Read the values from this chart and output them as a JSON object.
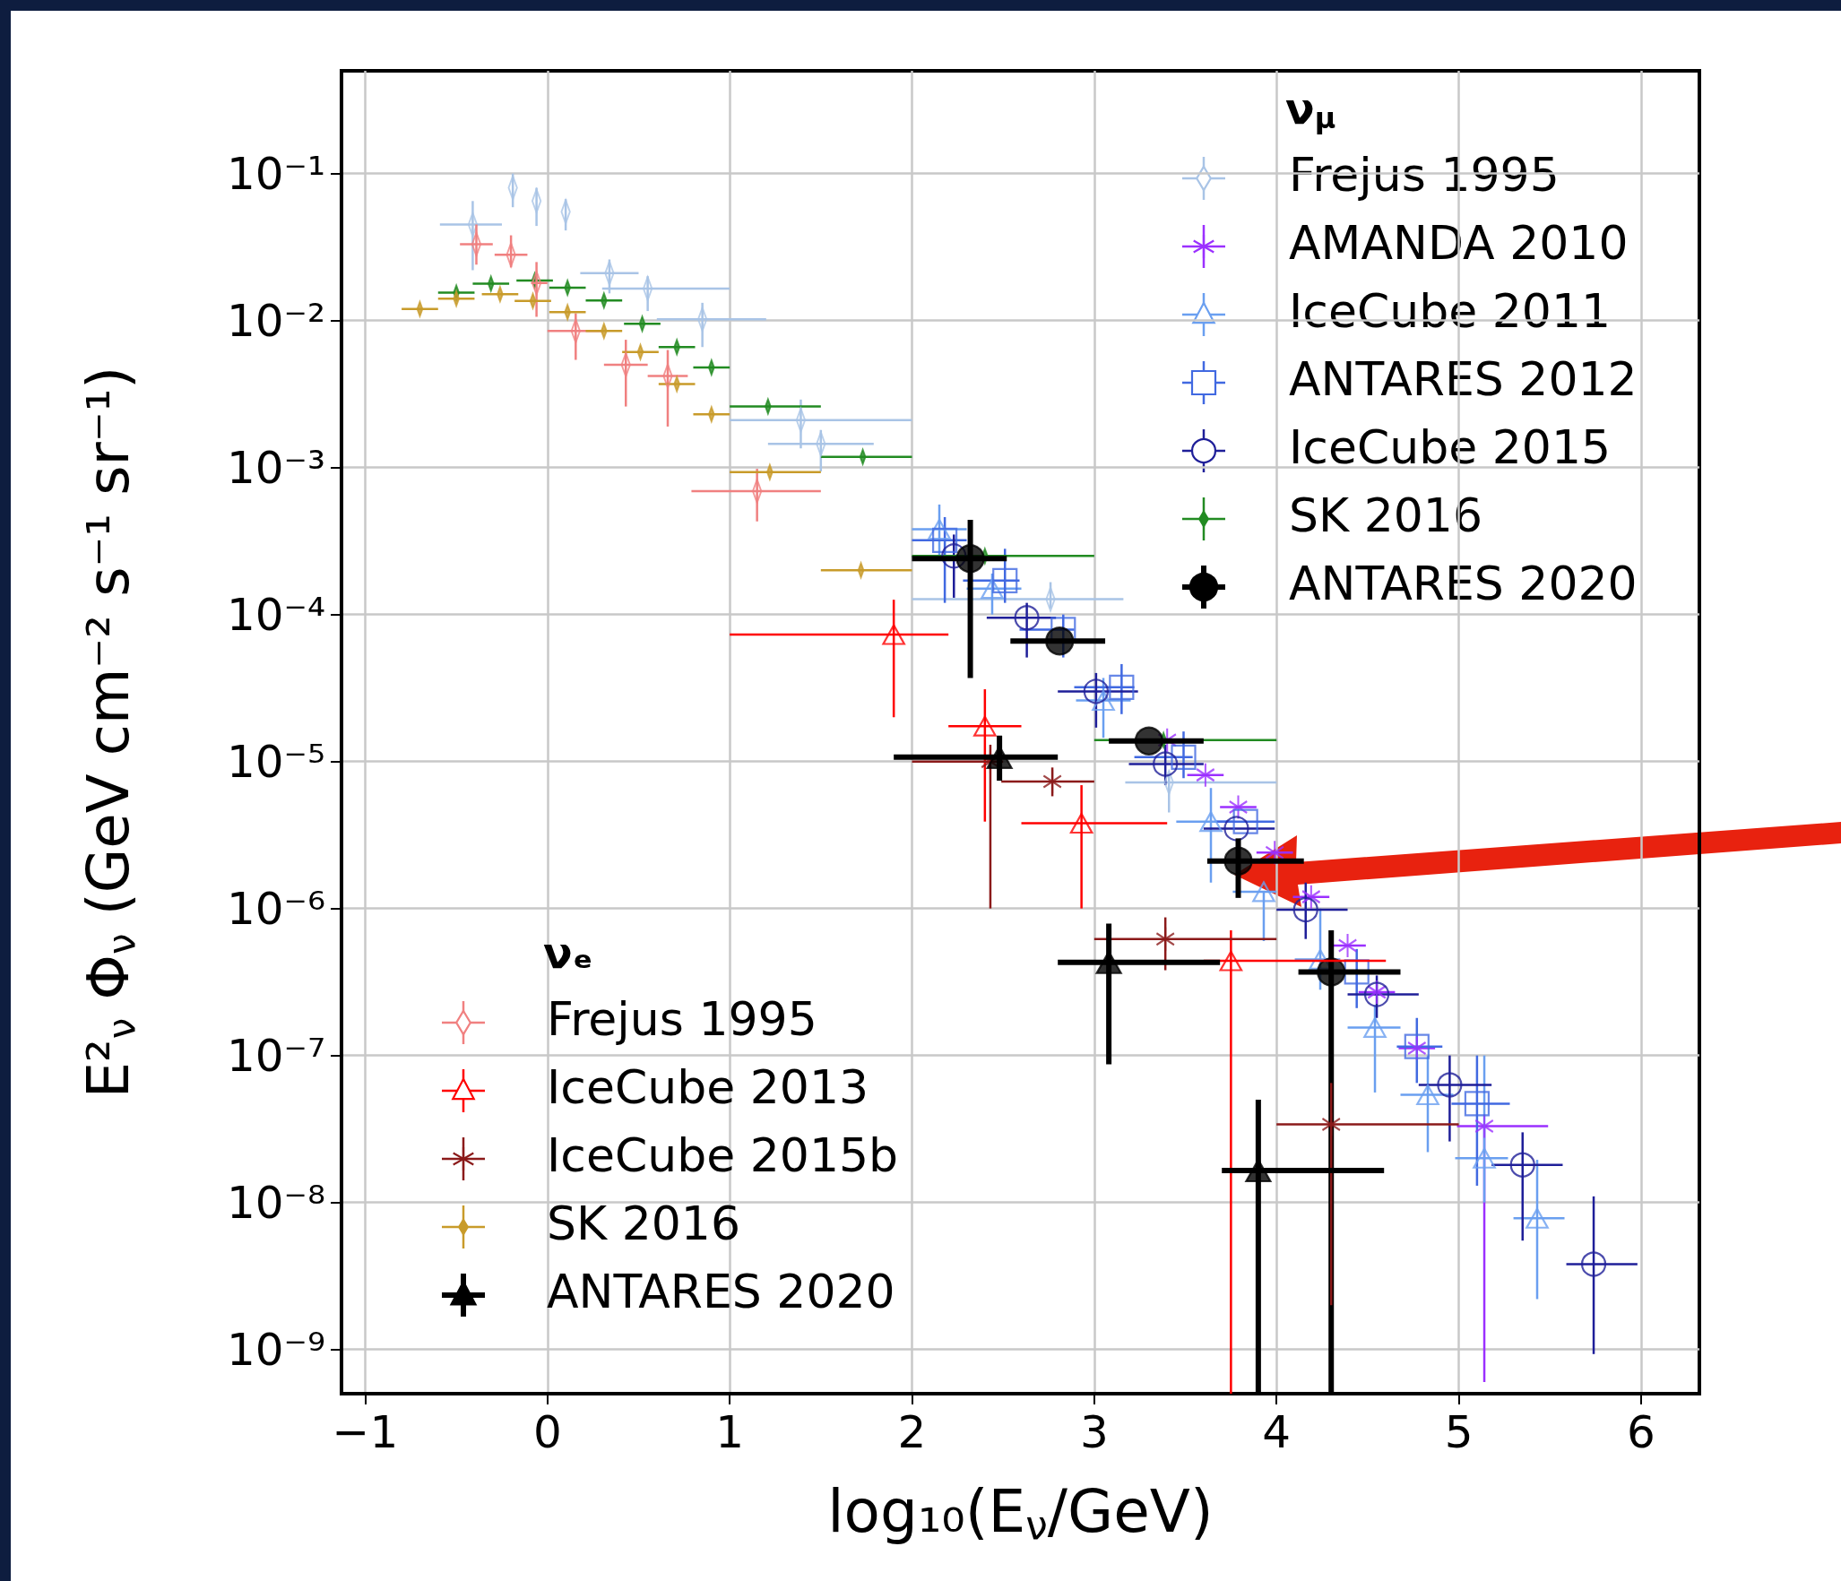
{
  "chart_data": [
    {
      "type": "scatter",
      "xlabel": "log₁₀(E$_{ν}$/GeV)",
      "ylabel": "E²$_{ν}$ Φ$_{ν}$ (GeV cm⁻² s⁻¹ sr⁻¹)",
      "log": "y",
      "grid": true,
      "legend": "top right",
      "legend_title": "ν$_{μ}$",
      "xlim": [
        -1.13,
        6.32
      ],
      "xticks": [
        {
          "value": -1,
          "label": "−1"
        },
        0,
        1,
        2,
        3,
        4,
        5,
        6
      ],
      "ylim": [
        5e-10,
        0.5
      ],
      "yticks": [
        {
          "value": 1e-09,
          "label": "10⁻⁹"
        },
        {
          "value": 1e-08,
          "label": "10⁻⁸"
        },
        {
          "value": 1e-07,
          "label": "10⁻⁷"
        },
        {
          "value": 1e-06,
          "label": "10⁻⁶"
        },
        {
          "value": 1e-05,
          "label": "10⁻⁵"
        },
        {
          "value": 0.0001,
          "label": "10⁻⁴"
        },
        {
          "value": 0.001,
          "label": "10⁻³"
        },
        {
          "value": 0.01,
          "label": "10⁻²"
        },
        {
          "value": 0.1,
          "label": "10⁻¹"
        }
      ],
      "series": [
        {
          "name": "Frejus 1995",
          "color": "#a9c4e6",
          "marker": "diamond",
          "x": [
            -0.41,
            -0.19,
            -0.06,
            0.1,
            0.34,
            0.55,
            0.85,
            1.39,
            1.5,
            2.76,
            3.41
          ],
          "values": [
            0.045,
            0.08,
            0.065,
            0.055,
            0.021,
            0.0165,
            0.0102,
            0.0021,
            0.00145,
            0.000127,
            7.2e-06
          ],
          "xerrors": [
            [
              -0.59,
              -0.25
            ],
            null,
            null,
            null,
            [
              0.18,
              0.5
            ],
            [
              0.3,
              1.0
            ],
            [
              0.6,
              1.2
            ],
            [
              1.0,
              2.0
            ],
            [
              1.21,
              1.79
            ],
            [
              2.0,
              3.16
            ],
            [
              3.17,
              4.0
            ]
          ],
          "errors": [
            [
              0.022,
              0.065
            ],
            [
              0.059,
              0.1
            ],
            [
              0.044,
              0.08
            ],
            [
              0.041,
              0.067
            ],
            [
              0.0153,
              0.026
            ],
            [
              0.0116,
              0.02
            ],
            [
              0.0066,
              0.0132
            ],
            [
              0.00135,
              0.0029
            ],
            [
              0.00094,
              0.0018
            ],
            [
              0.00011,
              0.000166
            ],
            [
              4.5e-06,
              8.2e-06
            ]
          ]
        },
        {
          "name": "AMANDA 2010",
          "color": "#9b30ff",
          "marker": "cross",
          "x": [
            3.4,
            3.61,
            3.79,
            3.99,
            4.19,
            4.39,
            4.55,
            4.77,
            5.14
          ],
          "values": [
            1.4e-05,
            8.1e-06,
            4.9e-06,
            2.4e-06,
            1.2e-06,
            5.6e-07,
            2.7e-07,
            1.12e-07,
            3.3e-08
          ],
          "xerrors": [
            null,
            0.1,
            0.1,
            0.1,
            0.1,
            0.1,
            0.1,
            0.1,
            [
              4.99,
              5.49
            ]
          ],
          "errors": [
            null,
            null,
            null,
            null,
            null,
            null,
            null,
            null,
            [
              6e-10,
              3.3e-08
            ]
          ]
        },
        {
          "name": "IceCube 2011",
          "color": "#6a9ff0",
          "marker": "triangle",
          "x": [
            2.15,
            2.44,
            3.05,
            3.64,
            3.93,
            4.24,
            4.54,
            4.83,
            5.14,
            5.43
          ],
          "values": [
            0.00038,
            0.00015,
            2.6e-05,
            3.9e-06,
            1.3e-06,
            4.5e-07,
            1.55e-07,
            5.4e-08,
            2e-08,
            7.8e-09
          ],
          "xerrors": [
            [
              2.0,
              2.3
            ],
            [
              2.3,
              2.6
            ],
            [
              2.9,
              3.2
            ],
            [
              3.45,
              3.76
            ],
            [
              3.76,
              4.0
            ],
            [
              4.1,
              4.35
            ],
            [
              4.39,
              4.68
            ],
            [
              4.68,
              4.97
            ],
            [
              4.98,
              5.27
            ],
            [
              5.3,
              5.58
            ]
          ],
          "errors": [
            [
              0.00025,
              0.00056
            ],
            [
              0.0001,
              0.00019
            ],
            [
              1.45e-05,
              3.7e-05
            ],
            [
              1.5e-06,
              6.6e-06
            ],
            [
              6e-07,
              1.3e-06
            ],
            [
              2.8e-07,
              1e-06
            ],
            [
              5.6e-08,
              2.2e-07
            ],
            [
              2.2e-08,
              1e-07
            ],
            [
              1e-08,
              1e-07
            ],
            [
              2.2e-09,
              1.95e-08
            ]
          ]
        },
        {
          "name": "ANTARES 2012",
          "color": "#4169e1",
          "marker": "square",
          "x": [
            2.18,
            2.51,
            2.83,
            3.15,
            3.49,
            3.83,
            4.44,
            4.77,
            5.1
          ],
          "values": [
            0.00032,
            0.00017,
            7.9e-05,
            3.2e-05,
            1.07e-05,
            3.9e-06,
            3.7e-07,
            1.15e-07,
            4.7e-08
          ],
          "xerrors": [
            [
              2.0,
              2.3
            ],
            [
              2.28,
              2.59
            ],
            [
              2.59,
              2.89
            ],
            [
              2.89,
              3.22
            ],
            [
              3.22,
              3.54
            ],
            [
              3.67,
              3.99
            ],
            null,
            [
              4.66,
              4.91
            ],
            [
              4.96,
              5.28
            ]
          ],
          "errors": [
            [
              0.00012,
              0.00046
            ],
            [
              0.00012,
              0.00028
            ],
            [
              5.1e-05,
              0.0001
            ],
            [
              2.1e-05,
              4.6e-05
            ],
            [
              7.7e-06,
              1.6e-05
            ],
            null,
            [
              2.1e-07,
              5.3e-07
            ],
            [
              6.5e-08,
              1.8e-07
            ],
            [
              1.3e-08,
              1e-07
            ]
          ]
        },
        {
          "name": "IceCube 2015",
          "color": "#1f1f99",
          "marker": "circle",
          "x": [
            2.23,
            2.63,
            3.01,
            3.39,
            3.78,
            4.16,
            4.55,
            4.95,
            5.35,
            5.74
          ],
          "values": [
            0.00025,
            9.5e-05,
            3e-05,
            9.6e-06,
            3.5e-06,
            9.8e-07,
            2.6e-07,
            6.3e-08,
            1.8e-08,
            3.8e-09
          ],
          "xerrors": [
            null,
            [
              2.41,
              2.79
            ],
            [
              2.8,
              3.24
            ],
            [
              3.19,
              3.6
            ],
            [
              3.6,
              3.99
            ],
            [
              4.0,
              4.39
            ],
            [
              4.39,
              4.78
            ],
            [
              4.78,
              5.18
            ],
            [
              5.18,
              5.57
            ],
            [
              5.59,
              5.98
            ]
          ],
          "errors": [
            [
              0.00013,
              0.00035
            ],
            [
              5.1e-05,
              0.00012
            ],
            [
              1.7e-05,
              4e-05
            ],
            [
              6.9e-06,
              1.3e-05
            ],
            null,
            [
              6.2e-07,
              1.5e-06
            ],
            [
              1.8e-07,
              3.5e-07
            ],
            [
              2.6e-08,
              1e-07
            ],
            [
              5.5e-09,
              3e-08
            ],
            [
              9.3e-10,
              1.1e-08
            ]
          ]
        },
        {
          "name": "SK 2016",
          "color": "#228b22",
          "marker": "diamond",
          "x": [
            -0.5,
            -0.31,
            -0.07,
            0.11,
            0.31,
            0.52,
            0.71,
            0.9,
            1.21,
            1.73,
            2.4,
            3.38
          ],
          "values": [
            0.0155,
            0.0178,
            0.0187,
            0.0167,
            0.0137,
            0.0095,
            0.0066,
            0.0048,
            0.0026,
            0.00118,
            0.00025,
            1.4e-05
          ],
          "xerrors": [
            0.1,
            0.1,
            0.1,
            0.1,
            0.1,
            0.1,
            0.1,
            0.1,
            [
              1.0,
              1.5
            ],
            [
              1.5,
              2.0
            ],
            [
              2.0,
              3.0
            ],
            [
              3.0,
              4.0
            ]
          ]
        },
        {
          "name": "ANTARES 2020",
          "color": "#000000",
          "marker": "circle",
          "x": [
            2.32,
            2.81,
            3.3,
            3.79,
            4.3
          ],
          "values": [
            0.00024,
            6.6e-05,
            1.38e-05,
            2.1e-06,
            3.7e-07
          ],
          "xerrors": [
            [
              2.0,
              2.52
            ],
            [
              2.54,
              3.06
            ],
            [
              3.08,
              3.6
            ],
            [
              3.62,
              4.15
            ],
            [
              4.12,
              4.68
            ]
          ],
          "errors": [
            [
              3.7e-05,
              0.00044
            ],
            null,
            null,
            [
              1.18e-06,
              3e-06
            ],
            [
              5e-10,
              7.1e-07
            ]
          ]
        }
      ]
    },
    {
      "type": "scatter",
      "log": "y",
      "legend": "bottom left",
      "legend_title": "νₑ",
      "xlim": [
        -1.13,
        6.32
      ],
      "ylim": [
        5e-10,
        0.5
      ],
      "series": [
        {
          "name": "Frejus 1995",
          "color": "#f08080",
          "marker": "diamond",
          "x": [
            -0.39,
            -0.2,
            -0.06,
            0.155,
            0.43,
            0.66,
            1.15
          ],
          "values": [
            0.033,
            0.028,
            0.018,
            0.0085,
            0.005,
            0.0042,
            0.00069
          ],
          "xerrors": [
            [
              -0.48,
              -0.3
            ],
            [
              -0.29,
              -0.11
            ],
            [
              -0.09,
              0
            ],
            [
              0.0,
              0.31
            ],
            [
              0.31,
              0.55
            ],
            [
              0.55,
              0.77
            ],
            [
              0.79,
              1.5
            ]
          ],
          "errors": [
            [
              0.024,
              0.045
            ],
            [
              0.023,
              0.038
            ],
            [
              0.0106,
              0.025
            ],
            [
              0.0054,
              0.0112
            ],
            [
              0.0026,
              0.0074
            ],
            [
              0.0019,
              0.0063
            ],
            [
              0.00043,
              0.00098
            ]
          ]
        },
        {
          "name": "IceCube 2013",
          "color": "#ff0000",
          "marker": "triangle",
          "x": [
            1.9,
            2.4,
            2.93,
            3.75
          ],
          "values": [
            7.3e-05,
            1.74e-05,
            3.8e-06,
            4.4e-07
          ],
          "xerrors": [
            [
              1.0,
              2.2
            ],
            [
              2.2,
              2.6
            ],
            [
              2.6,
              3.4
            ],
            [
              3.6,
              4.6
            ]
          ],
          "errors": [
            [
              2e-05,
              0.000126
            ],
            [
              3.9e-06,
              3.1e-05
            ],
            [
              1e-06,
              6.9e-06
            ],
            [
              5e-10,
              7.1e-07
            ]
          ]
        },
        {
          "name": "IceCube 2015b",
          "color": "#8b1a1a",
          "marker": "cross",
          "x": [
            2.43,
            2.77,
            3.39,
            4.3
          ],
          "values": [
            1e-05,
            7.3e-06,
            6.2e-07,
            3.4e-08
          ],
          "xerrors": [
            [
              2.0,
              2.5
            ],
            [
              2.49,
              3.0
            ],
            [
              3.0,
              4.0
            ],
            [
              4.0,
              5.0
            ]
          ],
          "errors": [
            [
              1e-06,
              1.3e-05
            ],
            [
              5.8e-06,
              9.1e-06
            ],
            [
              3.8e-07,
              8.7e-07
            ],
            [
              2e-09,
              6.5e-08
            ]
          ]
        },
        {
          "name": "SK 2016",
          "color": "#c89b2a",
          "marker": "diamond",
          "x": [
            -0.7,
            -0.5,
            -0.26,
            -0.08,
            0.11,
            0.31,
            0.51,
            0.71,
            0.9,
            1.22,
            1.72
          ],
          "values": [
            0.012,
            0.0141,
            0.0151,
            0.0136,
            0.0114,
            0.0085,
            0.0061,
            0.0037,
            0.0023,
            0.00093,
            0.0002
          ],
          "xerrors": [
            0.1,
            0.1,
            0.1,
            0.1,
            0.1,
            0.1,
            0.1,
            0.1,
            0.1,
            [
              1.0,
              1.5
            ],
            [
              1.5,
              2.0
            ]
          ]
        },
        {
          "name": "ANTARES 2020",
          "color": "#000000",
          "marker": "triangle",
          "x": [
            2.48,
            3.08,
            3.9
          ],
          "values": [
            1.07e-05,
            4.3e-07,
            1.65e-08
          ],
          "xerrors": [
            [
              1.9,
              2.8
            ],
            [
              2.8,
              3.69
            ],
            [
              3.7,
              4.59
            ]
          ],
          "errors": [
            [
              7.4e-06,
              1.5e-05
            ],
            [
              8.7e-08,
              7.9e-07
            ],
            [
              5e-10,
              5e-08
            ]
          ]
        }
      ]
    }
  ]
}
